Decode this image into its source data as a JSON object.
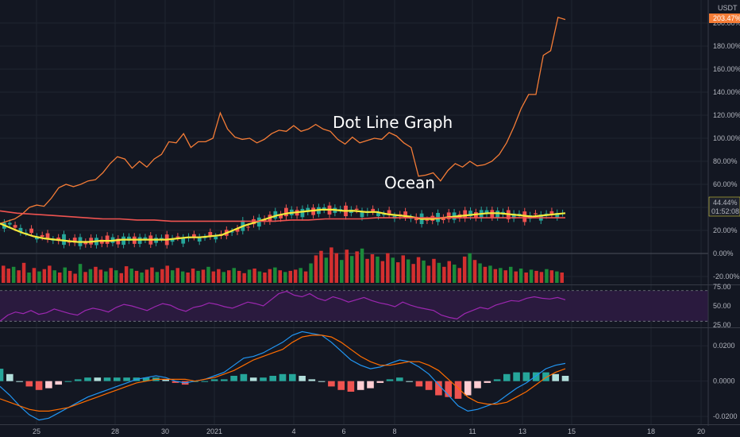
{
  "chart_data": {
    "type": "line",
    "currency": "USDT",
    "annotations": [
      "Dot Line Graph",
      "Ocean"
    ],
    "x_ticks": [
      "25",
      "28",
      "30",
      "2021",
      "4",
      "6",
      "8",
      "11",
      "13",
      "15",
      "18",
      "20"
    ],
    "price_pane": {
      "y_ticks": [
        "200.00%",
        "180.00%",
        "160.00%",
        "140.00%",
        "120.00%",
        "100.00%",
        "80.00%",
        "60.00%",
        "40.00%",
        "20.00%",
        "0.00%",
        "-20.00%"
      ],
      "ylim": [
        -20,
        210
      ],
      "badges": {
        "last_compare": "203.47%",
        "last_price": "44.44%",
        "countdown": "01:52:08"
      },
      "series": [
        {
          "name": "compare",
          "color": "#f57c36",
          "values": [
            26,
            28,
            30,
            34,
            40,
            42,
            41,
            48,
            57,
            60,
            58,
            60,
            63,
            64,
            70,
            78,
            84,
            82,
            74,
            80,
            75,
            82,
            86,
            97,
            96,
            104,
            92,
            97,
            97,
            100,
            122,
            108,
            101,
            99,
            100,
            96,
            99,
            104,
            107,
            106,
            111,
            106,
            108,
            112,
            108,
            106,
            99,
            95,
            101,
            96,
            98,
            100,
            99,
            105,
            102,
            96,
            92,
            67,
            68,
            70,
            63,
            72,
            78,
            75,
            80,
            76,
            77,
            80,
            86,
            96,
            110,
            126,
            138,
            138,
            172,
            176,
            205,
            203
          ]
        },
        {
          "name": "sma-yellow",
          "color": "#f5eb3b",
          "values": [
            26,
            22,
            18,
            15,
            13,
            12,
            11,
            10,
            10,
            11,
            11,
            12,
            12,
            12,
            12,
            12,
            13,
            14,
            14,
            15,
            16,
            20,
            24,
            27,
            30,
            33,
            35,
            36,
            37,
            38,
            38,
            37,
            37,
            36,
            36,
            34,
            33,
            32,
            30,
            30,
            31,
            32,
            33,
            34,
            35,
            35,
            34,
            33,
            32,
            33,
            34,
            35
          ]
        },
        {
          "name": "sma-red",
          "color": "#ef5350",
          "values": [
            37,
            35,
            34,
            33,
            32,
            31,
            30,
            30,
            29,
            29,
            28,
            28,
            28,
            28,
            28,
            28,
            28,
            29,
            29,
            30,
            30,
            30,
            31,
            31,
            31,
            31,
            31,
            31,
            31,
            31,
            31,
            31,
            31,
            31
          ]
        }
      ],
      "volume_bars": [
        [
          30,
          0
        ],
        [
          25,
          0
        ],
        [
          28,
          1
        ],
        [
          22,
          0
        ],
        [
          35,
          0
        ],
        [
          18,
          1
        ],
        [
          26,
          0
        ],
        [
          20,
          1
        ],
        [
          24,
          0
        ],
        [
          30,
          0
        ],
        [
          22,
          1
        ],
        [
          18,
          0
        ],
        [
          27,
          1
        ],
        [
          21,
          0
        ],
        [
          16,
          0
        ],
        [
          33,
          1
        ],
        [
          19,
          0
        ],
        [
          24,
          1
        ],
        [
          28,
          0
        ],
        [
          23,
          0
        ],
        [
          20,
          1
        ],
        [
          26,
          0
        ],
        [
          22,
          1
        ],
        [
          17,
          0
        ],
        [
          29,
          0
        ],
        [
          25,
          1
        ],
        [
          21,
          0
        ],
        [
          18,
          1
        ],
        [
          23,
          0
        ],
        [
          27,
          0
        ],
        [
          19,
          1
        ],
        [
          24,
          0
        ],
        [
          30,
          0
        ],
        [
          22,
          1
        ],
        [
          26,
          0
        ],
        [
          20,
          1
        ],
        [
          18,
          0
        ],
        [
          25,
          0
        ],
        [
          21,
          1
        ],
        [
          23,
          0
        ],
        [
          28,
          1
        ],
        [
          20,
          0
        ],
        [
          24,
          0
        ],
        [
          19,
          1
        ],
        [
          22,
          0
        ],
        [
          26,
          1
        ],
        [
          21,
          0
        ],
        [
          17,
          0
        ],
        [
          23,
          1
        ],
        [
          25,
          0
        ],
        [
          20,
          1
        ],
        [
          18,
          0
        ],
        [
          24,
          0
        ],
        [
          27,
          1
        ],
        [
          22,
          0
        ],
        [
          19,
          1
        ],
        [
          21,
          0
        ],
        [
          23,
          0
        ],
        [
          26,
          1
        ],
        [
          20,
          0
        ],
        [
          34,
          1
        ],
        [
          48,
          0
        ],
        [
          56,
          0
        ],
        [
          44,
          1
        ],
        [
          62,
          0
        ],
        [
          52,
          0
        ],
        [
          40,
          1
        ],
        [
          58,
          0
        ],
        [
          47,
          1
        ],
        [
          55,
          0
        ],
        [
          60,
          1
        ],
        [
          42,
          0
        ],
        [
          50,
          0
        ],
        [
          46,
          1
        ],
        [
          38,
          0
        ],
        [
          52,
          0
        ],
        [
          44,
          1
        ],
        [
          36,
          0
        ],
        [
          48,
          0
        ],
        [
          41,
          1
        ],
        [
          33,
          0
        ],
        [
          45,
          0
        ],
        [
          39,
          1
        ],
        [
          30,
          0
        ],
        [
          42,
          0
        ],
        [
          35,
          1
        ],
        [
          28,
          0
        ],
        [
          38,
          0
        ],
        [
          32,
          1
        ],
        [
          26,
          0
        ],
        [
          46,
          0
        ],
        [
          52,
          1
        ],
        [
          40,
          0
        ],
        [
          34,
          1
        ],
        [
          28,
          0
        ],
        [
          30,
          1
        ],
        [
          24,
          0
        ],
        [
          26,
          1
        ],
        [
          22,
          0
        ],
        [
          28,
          1
        ],
        [
          20,
          0
        ],
        [
          25,
          1
        ],
        [
          18,
          0
        ],
        [
          23,
          1
        ],
        [
          21,
          0
        ],
        [
          19,
          0
        ],
        [
          24,
          1
        ],
        [
          22,
          0
        ],
        [
          20,
          1
        ],
        [
          18,
          0
        ]
      ]
    },
    "rsi_pane": {
      "y_ticks": [
        "75.00",
        "50.00",
        "25.00"
      ],
      "ylim": [
        22,
        77
      ],
      "band": [
        30,
        70
      ],
      "color": "#9c27b0",
      "values": [
        30,
        38,
        42,
        40,
        44,
        39,
        41,
        46,
        43,
        40,
        38,
        44,
        47,
        45,
        42,
        48,
        52,
        50,
        47,
        44,
        49,
        53,
        51,
        46,
        43,
        48,
        50,
        54,
        52,
        49,
        47,
        51,
        55,
        53,
        50,
        58,
        66,
        69,
        64,
        62,
        66,
        60,
        57,
        62,
        59,
        55,
        58,
        61,
        57,
        54,
        52,
        49,
        55,
        51,
        48,
        46,
        44,
        38,
        35,
        33,
        40,
        44,
        48,
        46,
        51,
        54,
        57,
        56,
        60,
        62,
        60,
        59,
        61,
        58
      ]
    },
    "macd_pane": {
      "y_ticks": [
        "0.0200",
        "0.0000",
        "-0.0200"
      ],
      "ylim": [
        -0.024,
        0.03
      ],
      "macd_color": "#2196f3",
      "signal_color": "#ff6d00",
      "macd": [
        -0.003,
        -0.008,
        -0.014,
        -0.019,
        -0.022,
        -0.021,
        -0.018,
        -0.015,
        -0.012,
        -0.009,
        -0.007,
        -0.005,
        -0.003,
        -0.001,
        0.001,
        0.002,
        0.003,
        0.002,
        0.0,
        -0.001,
        0.0,
        0.001,
        0.003,
        0.005,
        0.009,
        0.013,
        0.014,
        0.016,
        0.019,
        0.022,
        0.026,
        0.028,
        0.027,
        0.026,
        0.022,
        0.017,
        0.012,
        0.009,
        0.007,
        0.008,
        0.01,
        0.012,
        0.011,
        0.008,
        0.004,
        -0.002,
        -0.008,
        -0.014,
        -0.017,
        -0.016,
        -0.014,
        -0.012,
        -0.008,
        -0.004,
        -0.001,
        0.003,
        0.007,
        0.009,
        0.01
      ],
      "signal": [
        -0.01,
        -0.012,
        -0.014,
        -0.016,
        -0.017,
        -0.017,
        -0.016,
        -0.015,
        -0.013,
        -0.011,
        -0.009,
        -0.007,
        -0.005,
        -0.003,
        -0.001,
        0.0,
        0.001,
        0.001,
        0.001,
        0.001,
        0.0,
        0.001,
        0.002,
        0.004,
        0.006,
        0.009,
        0.012,
        0.014,
        0.016,
        0.018,
        0.022,
        0.025,
        0.026,
        0.026,
        0.025,
        0.022,
        0.018,
        0.014,
        0.011,
        0.009,
        0.009,
        0.01,
        0.011,
        0.011,
        0.009,
        0.006,
        0.001,
        -0.004,
        -0.009,
        -0.012,
        -0.013,
        -0.013,
        -0.012,
        -0.009,
        -0.006,
        -0.002,
        0.002,
        0.005,
        0.007
      ]
    }
  }
}
